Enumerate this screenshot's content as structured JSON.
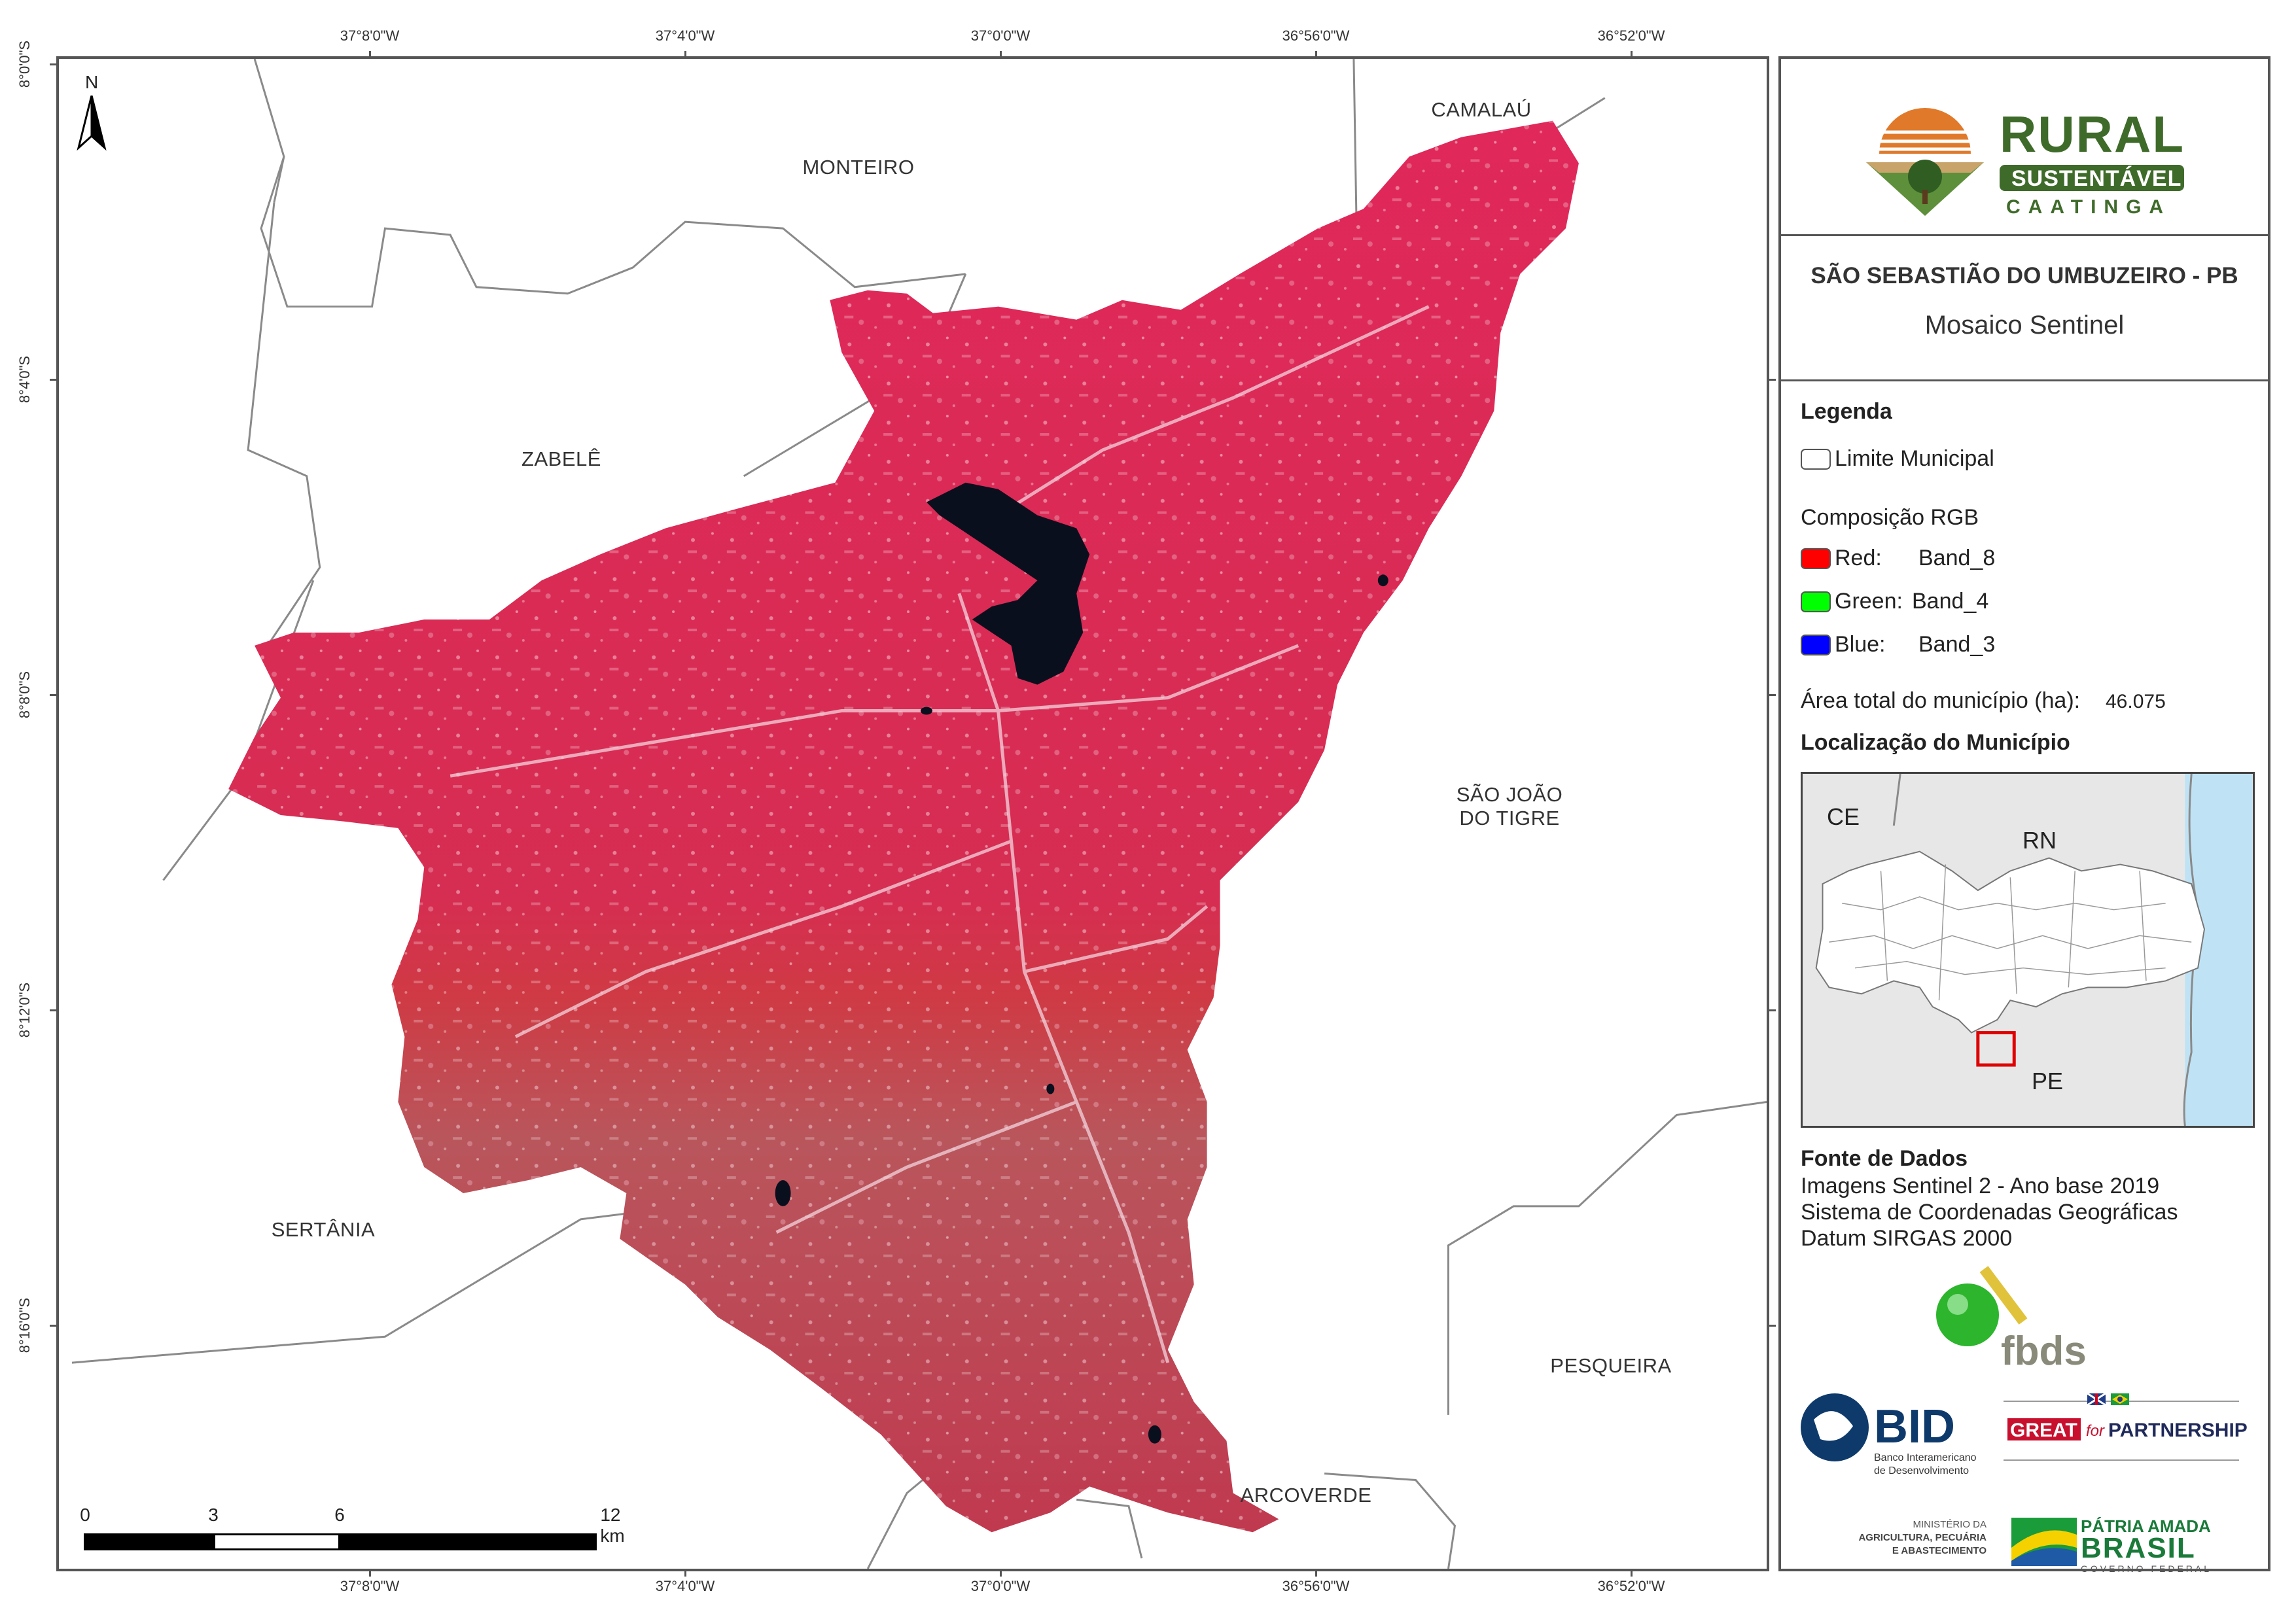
{
  "map": {
    "ticks_x": [
      "37°8'0\"W",
      "37°4'0\"W",
      "37°0'0\"W",
      "36°56'0\"W",
      "36°52'0\"W"
    ],
    "ticks_y": [
      "8°0'0\"S",
      "8°4'0\"S",
      "8°8'0\"S",
      "8°12'0\"S",
      "8°16'0\"S"
    ],
    "municipalities": {
      "monteiro": "MONTEIRO",
      "camalau": "CAMALAÚ",
      "zabele": "ZABELÊ",
      "sao_joao_1": "SÃO JOÃO",
      "sao_joao_2": "DO TIGRE",
      "sertania": "SERTÂNIA",
      "pesqueira": "PESQUEIRA",
      "arcoverde": "ARCOVERDE"
    },
    "north_label": "N",
    "scale": {
      "labels": [
        "0",
        "3",
        "6",
        "12 km"
      ]
    }
  },
  "panel": {
    "logo": {
      "rural": "RURAL",
      "sustentavel": "SUSTENTÁVEL",
      "caatinga": "CAATINGA"
    },
    "title": "SÃO SEBASTIÃO DO UMBUZEIRO - PB",
    "subtitle": "Mosaico Sentinel",
    "legend": {
      "heading": "Legenda",
      "limit": "Limite Municipal",
      "rgb_heading": "Composição RGB",
      "bands": [
        {
          "label": "Red:",
          "value": "Band_8",
          "color": "#ff0000"
        },
        {
          "label": "Green:",
          "value": "Band_4",
          "color": "#00ff00"
        },
        {
          "label": "Blue:",
          "value": "Band_3",
          "color": "#0000ff"
        }
      ],
      "area_label": "Área total do município (ha):",
      "area_value": "46.075"
    },
    "location": {
      "heading": "Localização do Município",
      "labels": {
        "ce": "CE",
        "rn": "RN",
        "pe": "PE"
      }
    },
    "source": {
      "heading": "Fonte de Dados",
      "lines": [
        "Imagens Sentinel 2 - Ano base 2019",
        "Sistema de Coordenadas Geográficas",
        "Datum SIRGAS 2000"
      ]
    },
    "sponsors": {
      "fbds": "fbds",
      "bid": "BID",
      "bid_sub1": "Banco Interamericano",
      "bid_sub2": "de Desenvolvimento",
      "great": "GREAT",
      "for": "for",
      "partnership": "PARTNERSHIP",
      "ministerio1": "MINISTÉRIO DA",
      "ministerio2": "AGRICULTURA, PECUÁRIA",
      "ministerio3": "E ABASTECIMENTO",
      "patria": "PÁTRIA AMADA",
      "brasil": "BRASIL",
      "governo": "GOVERNO FEDERAL"
    }
  },
  "colors": {
    "vegetation": "#d9284f",
    "dry": "#b85560",
    "water": "#0a0f1e",
    "brand_green": "#3f6b2a",
    "brand_orange": "#e07a2a"
  }
}
